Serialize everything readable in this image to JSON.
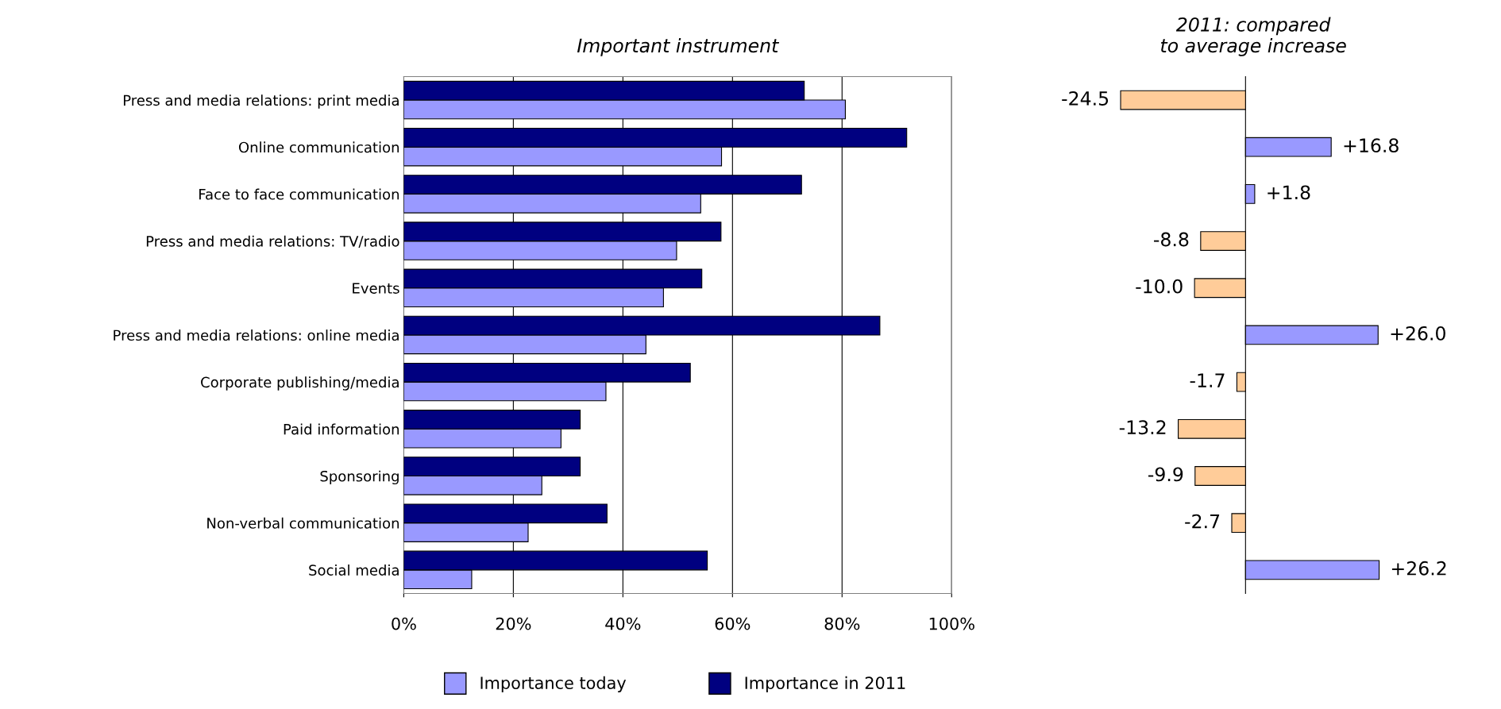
{
  "chart_data": [
    {
      "type": "bar",
      "orientation": "horizontal",
      "title": "Important instrument",
      "categories": [
        "Press and media relations: print media",
        "Online communication",
        "Face to face communication",
        "Press and media relations: TV/radio",
        "Events",
        "Press and media relations: online media",
        "Corporate publishing/media",
        "Paid information",
        "Sponsoring",
        "Non-verbal communication",
        "Social media"
      ],
      "series": [
        {
          "name": "Importance today",
          "color": "#9999ff",
          "values": [
            80.6,
            58.0,
            54.2,
            49.8,
            47.4,
            44.2,
            36.9,
            28.7,
            25.2,
            22.7,
            12.4
          ]
        },
        {
          "name": "Importance in 2011",
          "color": "#000080",
          "values": [
            73.1,
            91.8,
            72.6,
            57.9,
            54.4,
            86.9,
            52.3,
            32.2,
            32.2,
            37.1,
            55.4
          ]
        }
      ],
      "xlim": [
        0,
        100
      ],
      "xticks": [
        {
          "value": 0,
          "label": "0%"
        },
        {
          "value": 20,
          "label": "20%"
        },
        {
          "value": 40,
          "label": "40%"
        },
        {
          "value": 60,
          "label": "60%"
        },
        {
          "value": 80,
          "label": "80%"
        },
        {
          "value": 100,
          "label": "100%"
        }
      ],
      "grid": "x",
      "legend": "bottom"
    },
    {
      "type": "bar",
      "orientation": "horizontal",
      "title": "2011: compared\nto average increase",
      "categories": [
        null,
        null,
        null,
        null,
        null,
        null,
        null,
        null,
        null,
        null,
        null
      ],
      "values": [
        -24.5,
        16.8,
        1.8,
        -8.8,
        -10.0,
        26.0,
        -1.7,
        -13.2,
        -9.9,
        -2.7,
        26.2
      ],
      "value_labels": [
        "-24.5",
        "+16.8",
        "+1.8",
        "-8.8",
        "-10.0",
        "+26.0",
        "-1.7",
        "-13.2",
        "-9.9",
        "-2.7",
        "+26.2"
      ],
      "colors": [
        "#ffcc99",
        "#9999ff",
        "#9999ff",
        "#ffcc99",
        "#ffcc99",
        "#9999ff",
        "#ffcc99",
        "#ffcc99",
        "#ffcc99",
        "#ffcc99",
        "#9999ff"
      ],
      "tick_labels": false
    }
  ]
}
